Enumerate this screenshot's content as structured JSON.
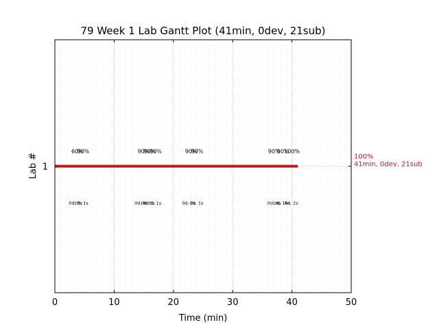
{
  "chart_data": {
    "type": "gantt",
    "title": "79 Week 1 Lab Gantt Plot (41min, 0dev, 21sub)",
    "xlabel": "Time (min)",
    "ylabel": "Lab #",
    "xlim": [
      0,
      50
    ],
    "ylim": [
      0,
      2
    ],
    "x_ticks": [
      0,
      10,
      20,
      30,
      40,
      50
    ],
    "y_ticks": [
      1
    ],
    "grid": "vertical dotted at x ticks, faint minor lines each minute",
    "bar": {
      "lab": 1,
      "start": 0,
      "end": 41,
      "color": "#c0181a",
      "label_top": "100%",
      "label_bottom": "41min, 0dev, 21sub"
    },
    "annotations_above": [
      {
        "x": 3.8,
        "text": "60%"
      },
      {
        "x": 4.8,
        "text": "90%"
      },
      {
        "x": 15.0,
        "text": "90%"
      },
      {
        "x": 16.0,
        "text": "90%"
      },
      {
        "x": 17.0,
        "text": "90%"
      },
      {
        "x": 23.0,
        "text": "90%"
      },
      {
        "x": 24.0,
        "text": "90%"
      },
      {
        "x": 37.0,
        "text": "90%"
      },
      {
        "x": 38.5,
        "text": "90%"
      },
      {
        "x": 40.0,
        "text": "100%"
      }
    ],
    "annotations_below": [
      {
        "x": 3.5,
        "text": "0d, 5s"
      },
      {
        "x": 4.5,
        "text": "0d, 1s"
      },
      {
        "x": 14.6,
        "text": "0d, 8s"
      },
      {
        "x": 15.7,
        "text": "0d, 1s"
      },
      {
        "x": 16.8,
        "text": "0d, 1s"
      },
      {
        "x": 22.6,
        "text": "0d, 2s"
      },
      {
        "x": 23.9,
        "text": "0d, 1s"
      },
      {
        "x": 37.0,
        "text": "0d, 4s"
      },
      {
        "x": 38.3,
        "text": "0d, 16s"
      },
      {
        "x": 39.9,
        "text": "0d, 2s"
      }
    ]
  }
}
